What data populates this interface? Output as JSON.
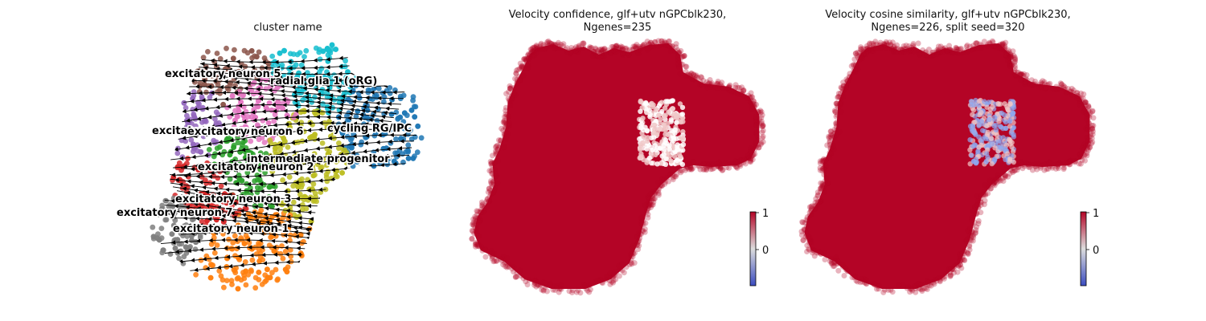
{
  "panels": [
    {
      "title_line1": "cluster name",
      "title_line2": ""
    },
    {
      "title_line1": "Velocity confidence, glf+utv nGPCblk230,",
      "title_line2": "Ngenes=235"
    },
    {
      "title_line1": "Velocity cosine similarity, glf+utv nGPCblk230,",
      "title_line2": "Ngenes=226, split seed=320"
    }
  ],
  "chart_data": [
    {
      "type": "scatter",
      "title": "cluster name",
      "xlabel": "",
      "ylabel": "",
      "grid": false,
      "overlay": "velocity streamlines",
      "clusters": [
        {
          "name": "excitatory neuron 5",
          "color": "#8c564b"
        },
        {
          "name": "radial glia 1 (oRG)",
          "color": "#17becf"
        },
        {
          "name": "excitatory neuron 6",
          "color": "#e377c2"
        },
        {
          "name": "excitatory neuron 4",
          "color": "#9467bd"
        },
        {
          "name": "cycling RG/IPC",
          "color": "#1f77b4"
        },
        {
          "name": "intermediate progenitor",
          "color": "#bcbd22"
        },
        {
          "name": "excitatory neuron 2",
          "color": "#2ca02c"
        },
        {
          "name": "excitatory neuron 3",
          "color": "#d62728"
        },
        {
          "name": "excitatory neuron 7",
          "color": "#7f7f7f"
        },
        {
          "name": "excitatory neuron 1",
          "color": "#ff7f0e"
        }
      ],
      "labels": {
        "exc5": "excitatory neuron 5",
        "rg1": "radial glia 1 (oRG)",
        "exc4": "excitatory neuron 4",
        "exc6": "excitatory neuron 6",
        "cyc": "cycling RG/IPC",
        "ipc": "intermediate progenitor",
        "exc2": "excitatory neuron 2",
        "exc3": "excitatory neuron 3",
        "exc7": "excitatory neuron 7",
        "exc1": "excitatory neuron 1"
      }
    },
    {
      "type": "scatter",
      "title": "Velocity confidence, glf+utv nGPCblk230, Ngenes=235",
      "colormap": "coolwarm",
      "dominant_value": 1,
      "low_value_region": "center-right notch",
      "colorbar": {
        "ticks": [
          "0",
          "1"
        ],
        "range": [
          -0.9,
          1
        ]
      }
    },
    {
      "type": "scatter",
      "title": "Velocity cosine similarity, glf+utv nGPCblk230, Ngenes=226, split seed=320",
      "colormap": "coolwarm",
      "dominant_value": 1,
      "low_value_region": "center-right notch (bluish)",
      "colorbar": {
        "ticks": [
          "0",
          "1"
        ],
        "range": [
          -0.9,
          1
        ]
      }
    }
  ],
  "colors": {
    "high": "#b40426",
    "low": "#3b4cc0",
    "mid": "#dddddd"
  }
}
